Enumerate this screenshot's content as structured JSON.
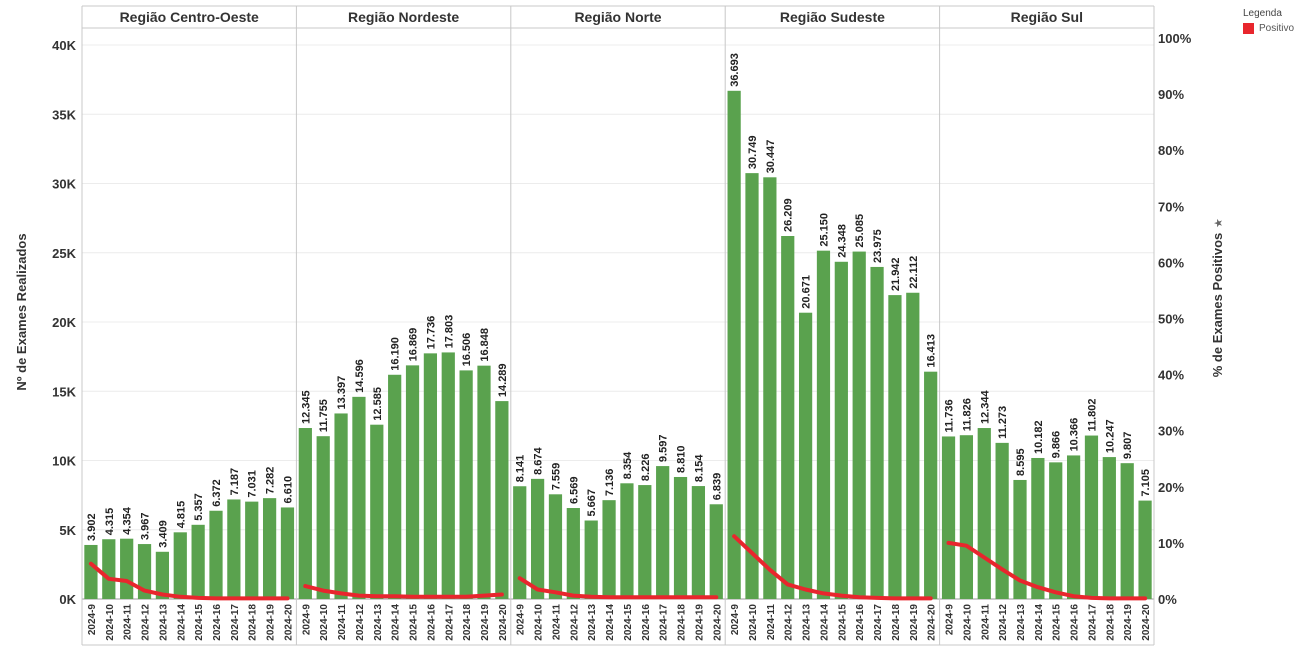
{
  "legend": {
    "title": "Legenda",
    "items": [
      {
        "label": "Positivo",
        "color": "#e8262d"
      }
    ]
  },
  "colors": {
    "bar": "#5aa24e",
    "line": "#e8262d",
    "grid": "#ececec",
    "panel_border": "#c8c8c8"
  },
  "chart_data": {
    "type": "bar",
    "combo_line": true,
    "panels": [
      "Região Centro-Oeste",
      "Região Nordeste",
      "Região Norte",
      "Região Sudeste",
      "Região Sul"
    ],
    "categories": [
      "2024-9",
      "2024-10",
      "2024-11",
      "2024-12",
      "2024-13",
      "2024-14",
      "2024-15",
      "2024-16",
      "2024-17",
      "2024-18",
      "2024-19",
      "2024-20"
    ],
    "ylabel": "Nº de Exames Realizados",
    "ylabel_right": "% de Exames Positivos",
    "ylim": [
      0,
      40000
    ],
    "ylim_right": [
      0,
      100
    ],
    "y_ticks": [
      "0K",
      "5K",
      "10K",
      "15K",
      "20K",
      "25K",
      "30K",
      "35K",
      "40K"
    ],
    "y_tick_values": [
      0,
      5000,
      10000,
      15000,
      20000,
      25000,
      30000,
      35000,
      40000
    ],
    "y_right_ticks": [
      "0%",
      "10%",
      "20%",
      "30%",
      "40%",
      "50%",
      "60%",
      "70%",
      "80%",
      "90%",
      "100%"
    ],
    "y_right_tick_values": [
      0,
      10,
      20,
      30,
      40,
      50,
      60,
      70,
      80,
      90,
      100
    ],
    "series": [
      {
        "name": "Nº de Exames Realizados",
        "kind": "bar",
        "values": [
          [
            3902,
            4315,
            4354,
            3967,
            3409,
            4815,
            5357,
            6372,
            7187,
            7031,
            7282,
            6610
          ],
          [
            12345,
            11755,
            13397,
            14596,
            12585,
            16190,
            16869,
            17736,
            17803,
            16506,
            16848,
            14289
          ],
          [
            8141,
            8674,
            7559,
            6569,
            5667,
            7136,
            8354,
            8226,
            9597,
            8810,
            8154,
            6839
          ],
          [
            36693,
            30749,
            30447,
            26209,
            20671,
            25150,
            24348,
            25085,
            23975,
            21942,
            22112,
            16413
          ],
          [
            11736,
            11826,
            12344,
            11273,
            8595,
            10182,
            9866,
            10366,
            11802,
            10247,
            9807,
            7105
          ]
        ],
        "labels": [
          [
            "3.902",
            "4.315",
            "4.354",
            "3.967",
            "3.409",
            "4.815",
            "5.357",
            "6.372",
            "7.187",
            "7.031",
            "7.282",
            "6.610"
          ],
          [
            "12.345",
            "11.755",
            "13.397",
            "14.596",
            "12.585",
            "16.190",
            "16.869",
            "17.736",
            "17.803",
            "16.506",
            "16.848",
            "14.289"
          ],
          [
            "8.141",
            "8.674",
            "7.559",
            "6.569",
            "5.667",
            "7.136",
            "8.354",
            "8.226",
            "9.597",
            "8.810",
            "8.154",
            "6.839"
          ],
          [
            "36.693",
            "30.749",
            "30.447",
            "26.209",
            "20.671",
            "25.150",
            "24.348",
            "25.085",
            "23.975",
            "21.942",
            "22.112",
            "16.413"
          ],
          [
            "11.736",
            "11.826",
            "12.344",
            "11.273",
            "8.595",
            "10.182",
            "9.866",
            "10.366",
            "11.802",
            "10.247",
            "9.807",
            "7.105"
          ]
        ]
      },
      {
        "name": "Positivo",
        "kind": "line",
        "axis": "right",
        "values": [
          [
            6.3,
            3.6,
            3.2,
            1.5,
            0.8,
            0.4,
            0.2,
            0.1,
            0.1,
            0.1,
            0.1,
            0.1
          ],
          [
            2.3,
            1.5,
            1.0,
            0.6,
            0.5,
            0.5,
            0.4,
            0.4,
            0.4,
            0.4,
            0.6,
            0.8
          ],
          [
            3.7,
            1.7,
            1.2,
            0.6,
            0.4,
            0.3,
            0.3,
            0.3,
            0.3,
            0.3,
            0.3,
            0.3
          ],
          [
            11.2,
            8.2,
            5.2,
            2.6,
            1.7,
            1.0,
            0.6,
            0.3,
            0.2,
            0.1,
            0.1,
            0.1
          ],
          [
            10.0,
            9.5,
            7.4,
            5.3,
            3.3,
            2.1,
            1.2,
            0.5,
            0.2,
            0.1,
            0.1,
            0.1
          ]
        ]
      }
    ],
    "grid": true,
    "legend_position": "top-right"
  }
}
